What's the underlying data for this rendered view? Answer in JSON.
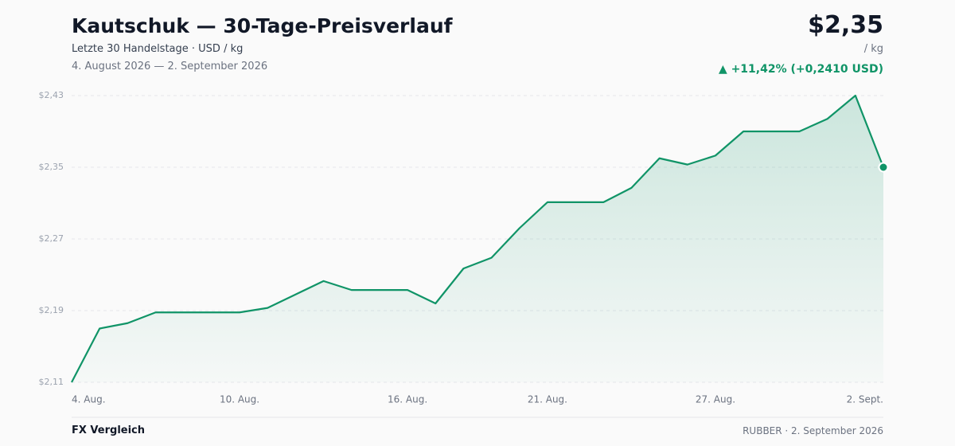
{
  "header": {
    "title": "Kautschuk — 30-Tage-Preisverlauf",
    "subtitle": "Letzte 30 Handelstage · USD / kg",
    "date_range": "4. August 2026 — 2. September 2026",
    "price": "$2,35",
    "unit": "/ kg",
    "change": "▲ +11,42% (+0,2410 USD)"
  },
  "chart_data": {
    "type": "line",
    "color": "#109467",
    "categories": [
      "4. Aug.",
      null,
      null,
      null,
      null,
      null,
      "10. Aug.",
      null,
      null,
      null,
      null,
      null,
      "16. Aug.",
      null,
      null,
      null,
      null,
      "21. Aug.",
      null,
      null,
      null,
      null,
      null,
      "27. Aug.",
      null,
      null,
      null,
      null,
      null,
      "2. Sept."
    ],
    "values": [
      2.11,
      2.17,
      2.176,
      2.188,
      2.188,
      2.188,
      2.188,
      2.193,
      2.208,
      2.223,
      2.213,
      2.213,
      2.213,
      2.198,
      2.237,
      2.249,
      2.282,
      2.311,
      2.311,
      2.311,
      2.327,
      2.36,
      2.353,
      2.363,
      2.39,
      2.39,
      2.39,
      2.404,
      2.43,
      2.35
    ],
    "ylim": [
      2.11,
      2.43
    ],
    "yticks": [
      {
        "value": 2.11,
        "label": "$2,11"
      },
      {
        "value": 2.19,
        "label": "$2,19"
      },
      {
        "value": 2.27,
        "label": "$2,27"
      },
      {
        "value": 2.35,
        "label": "$2,35"
      },
      {
        "value": 2.43,
        "label": "$2,43"
      }
    ],
    "grid": true
  },
  "footer": {
    "link": "FX Vergleich",
    "source": "RUBBER · 2. September 2026"
  }
}
